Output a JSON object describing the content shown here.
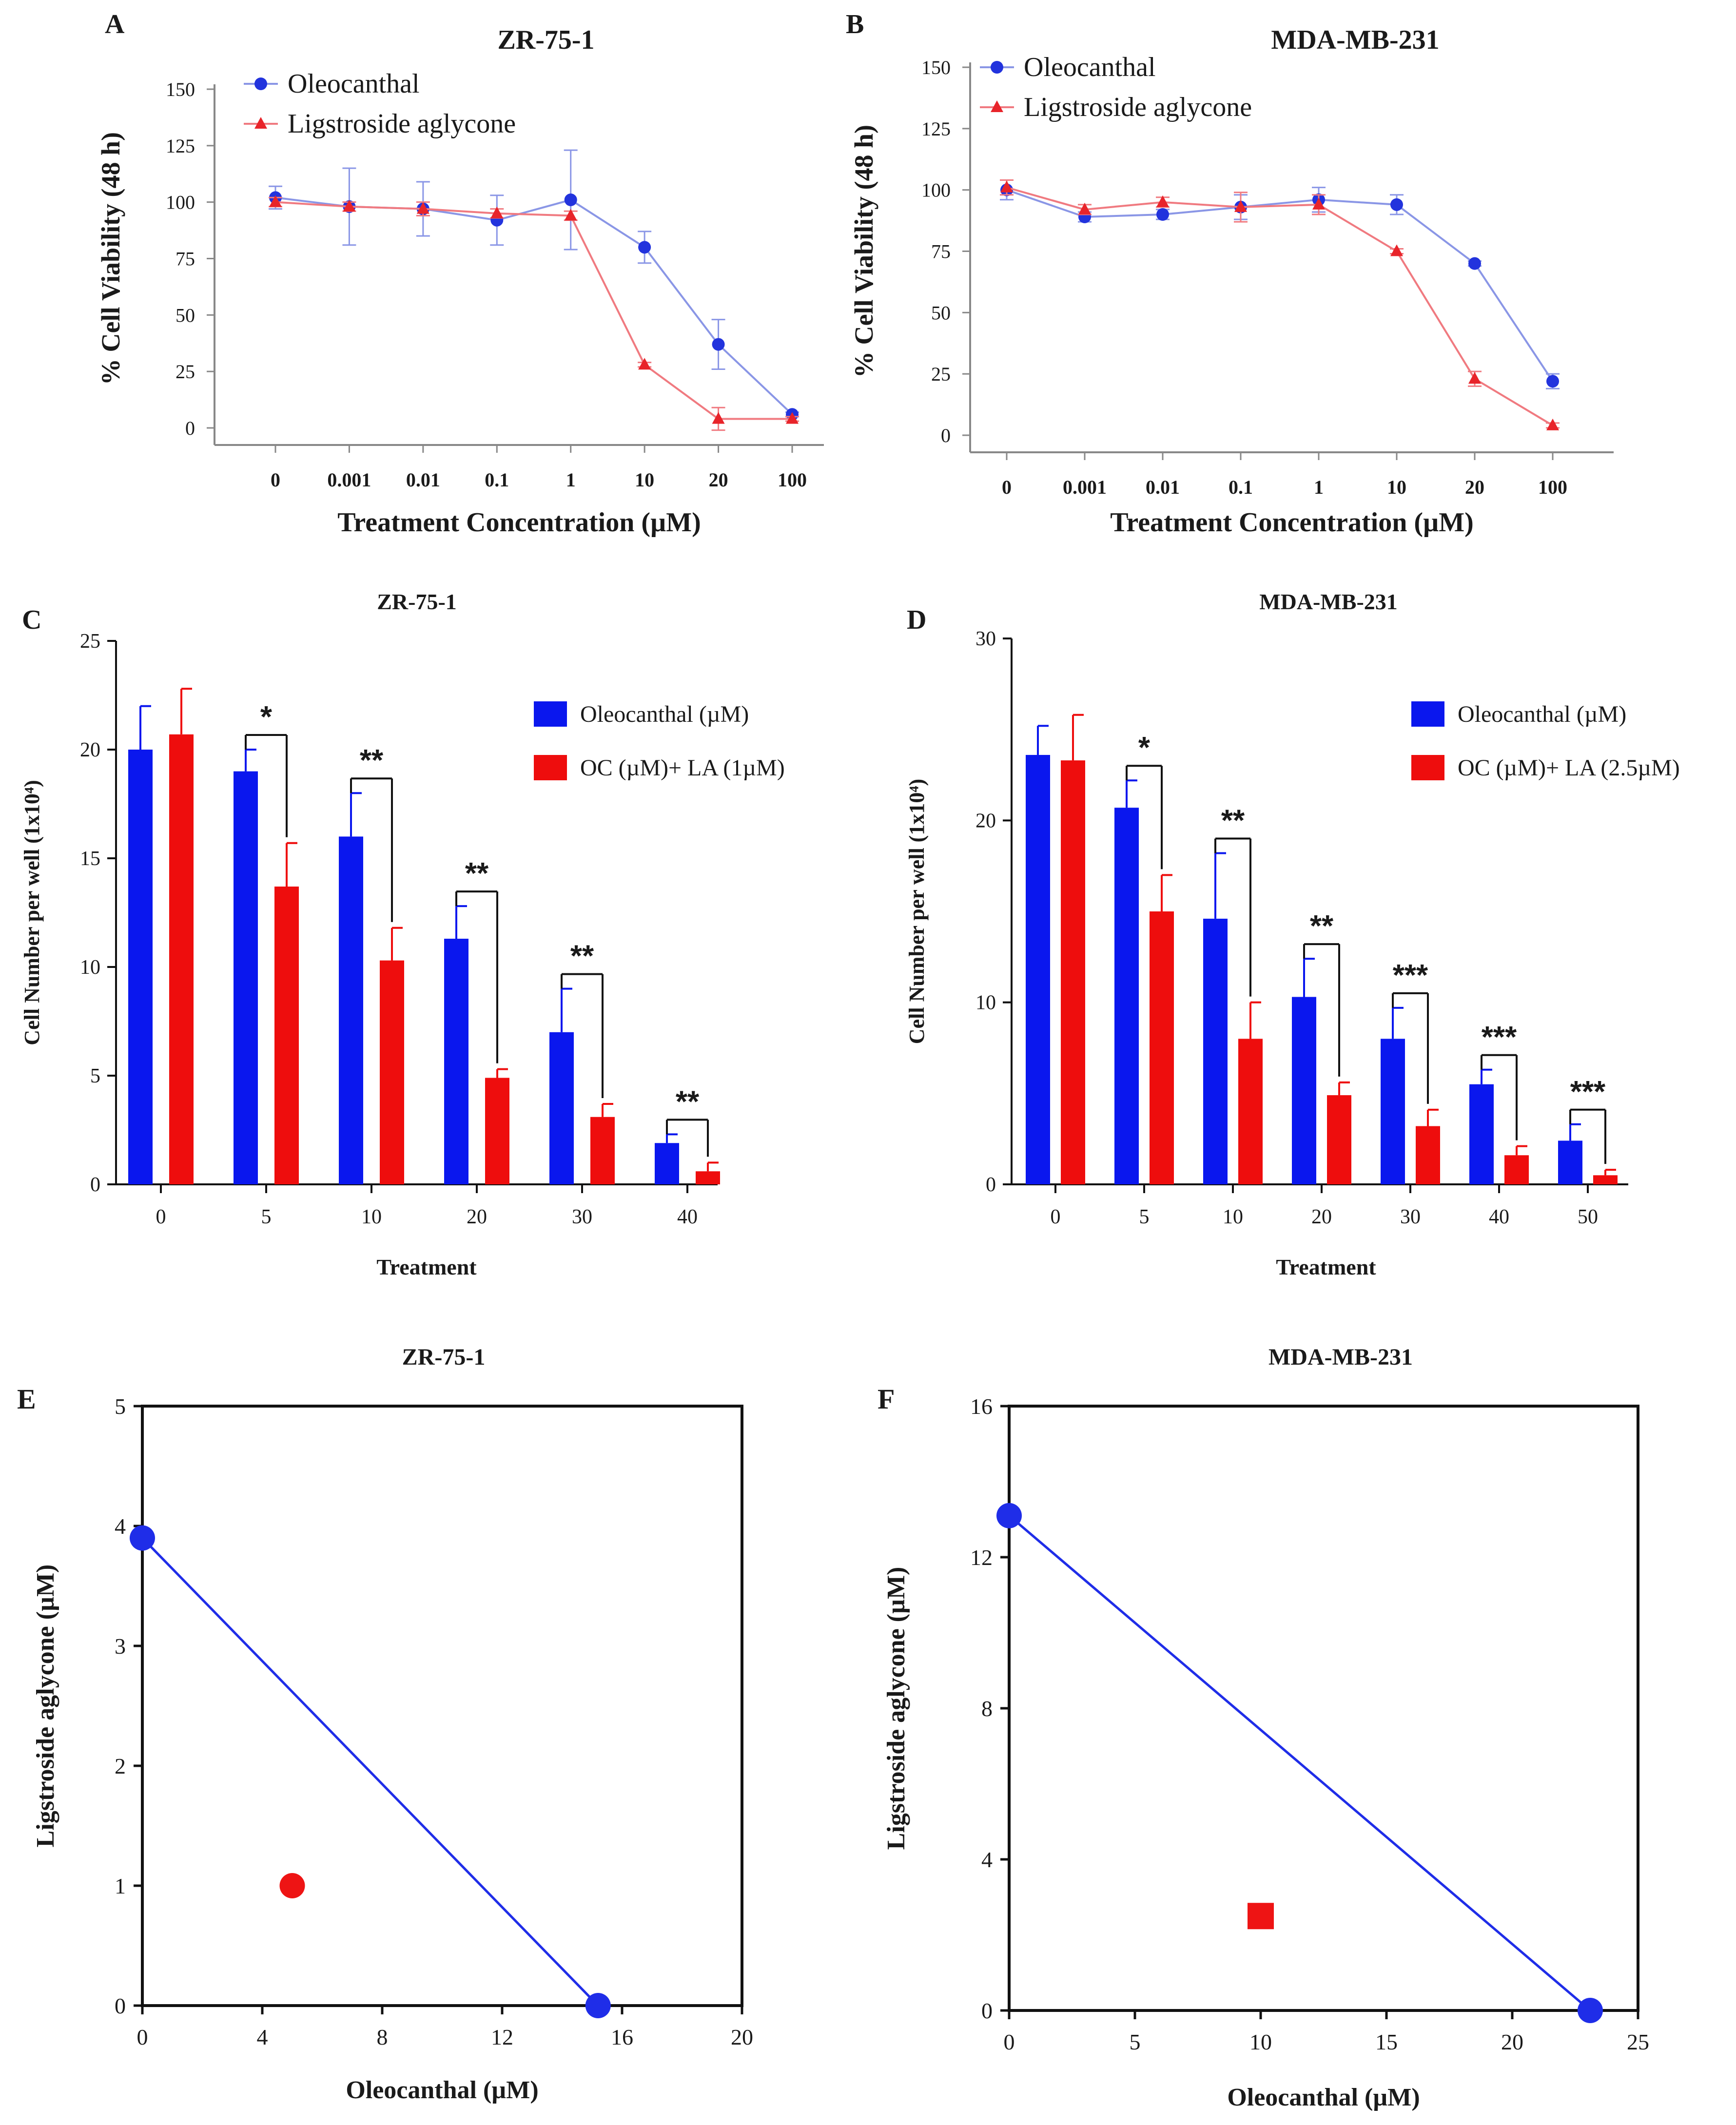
{
  "chart_data": [
    {
      "panel": "A",
      "type": "line",
      "title": "ZR-75-1",
      "xlabel": "Treatment Concentration (µM)",
      "ylabel": "% Cell Viability (48 h)",
      "categories": [
        "0",
        "0.001",
        "0.01",
        "0.1",
        "1",
        "10",
        "20",
        "100"
      ],
      "yticks": [
        "0",
        "25",
        "50",
        "75",
        "100",
        "125",
        "150"
      ],
      "ylim": [
        0,
        150
      ],
      "series": [
        {
          "name": "Oleocanthal",
          "color": "#2233dd",
          "line": "#8a96e6",
          "marker": "circle",
          "values": [
            102,
            98,
            97,
            92,
            101,
            80,
            37,
            6
          ],
          "err": [
            5,
            17,
            12,
            11,
            22,
            7,
            11,
            1
          ]
        },
        {
          "name": "Ligstroside aglycone",
          "color": "#e8242a",
          "line": "#f07a80",
          "marker": "triangle",
          "values": [
            100,
            98,
            97,
            95,
            94,
            28,
            4,
            4
          ],
          "err": [
            2,
            2,
            3,
            2,
            2,
            1,
            5,
            1
          ]
        }
      ]
    },
    {
      "panel": "B",
      "type": "line",
      "title": "MDA-MB-231",
      "xlabel": "Treatment Concentration (µM)",
      "ylabel": "% Cell Viability (48 h)",
      "categories": [
        "0",
        "0.001",
        "0.01",
        "0.1",
        "1",
        "10",
        "20",
        "100"
      ],
      "yticks": [
        "0",
        "25",
        "50",
        "75",
        "100",
        "125",
        "150"
      ],
      "ylim": [
        0,
        150
      ],
      "series": [
        {
          "name": "Oleocanthal",
          "color": "#2233dd",
          "line": "#8a96e6",
          "marker": "circle",
          "values": [
            100,
            89,
            90,
            93,
            96,
            94,
            70,
            22
          ],
          "err": [
            4,
            2,
            2,
            5,
            5,
            4,
            1,
            3
          ]
        },
        {
          "name": "Ligstroside aglycone",
          "color": "#e8242a",
          "line": "#f07a80",
          "marker": "triangle",
          "values": [
            101,
            92,
            95,
            93,
            94,
            75,
            23,
            4
          ],
          "err": [
            3,
            2,
            2,
            6,
            4,
            1,
            3,
            1
          ]
        }
      ]
    },
    {
      "panel": "C",
      "type": "bar",
      "title": "ZR-75-1",
      "xlabel": "Treatment",
      "ylabel": "Cell Number per well (1x10⁴)",
      "categories": [
        "0",
        "5",
        "10",
        "20",
        "30",
        "40"
      ],
      "yticks": [
        "0",
        "5",
        "10",
        "15",
        "20",
        "25"
      ],
      "ylim": [
        0,
        25
      ],
      "series": [
        {
          "name": "Oleocanthal (µM)",
          "color": "#0a17ee",
          "values": [
            20.0,
            19.0,
            16.0,
            11.3,
            7.0,
            1.9
          ],
          "err": [
            2.0,
            1.0,
            2.0,
            1.5,
            2.0,
            0.4
          ]
        },
        {
          "name": "OC (µM)+ LA (1µM)",
          "color": "#ee0d0d",
          "values": [
            20.7,
            13.7,
            10.3,
            4.9,
            3.1,
            0.6
          ],
          "err": [
            2.1,
            2.0,
            1.5,
            0.4,
            0.6,
            0.4
          ]
        }
      ],
      "significance": [
        "",
        "*",
        "**",
        "**",
        "**",
        "**"
      ]
    },
    {
      "panel": "D",
      "type": "bar",
      "title": "MDA-MB-231",
      "xlabel": "Treatment",
      "ylabel": "Cell Number per well (1x10⁴)",
      "categories": [
        "0",
        "5",
        "10",
        "20",
        "30",
        "40",
        "50"
      ],
      "yticks": [
        "0",
        "10",
        "20",
        "30"
      ],
      "ylim": [
        0,
        30
      ],
      "series": [
        {
          "name": "Oleocanthal (µM)",
          "color": "#0a17ee",
          "values": [
            23.6,
            20.7,
            14.6,
            10.3,
            8.0,
            5.5,
            2.4
          ],
          "err": [
            1.6,
            1.5,
            3.6,
            2.1,
            1.7,
            0.8,
            0.9
          ]
        },
        {
          "name": "OC (µM)+ LA (2.5µM)",
          "color": "#ee0d0d",
          "values": [
            23.3,
            15.0,
            8.0,
            4.9,
            3.2,
            1.6,
            0.5
          ],
          "err": [
            2.5,
            2.0,
            2.0,
            0.7,
            0.9,
            0.5,
            0.3
          ]
        }
      ],
      "significance": [
        "",
        "*",
        "**",
        "**",
        "***",
        "***",
        "***"
      ]
    },
    {
      "panel": "E",
      "type": "scatter",
      "title": "ZR-75-1",
      "xlabel": "Oleocanthal (µM)",
      "ylabel": "Ligstroside aglycone (µM)",
      "xlim": [
        0,
        20
      ],
      "ylim": [
        0,
        5
      ],
      "xticks": [
        0,
        4,
        8,
        12,
        16,
        20
      ],
      "yticks": [
        0,
        1,
        2,
        3,
        4,
        5
      ],
      "isobole": {
        "points": [
          [
            0,
            3.9
          ],
          [
            15.2,
            0
          ]
        ],
        "color": "#1f2de8"
      },
      "combination": {
        "x": 5,
        "y": 1,
        "shape": "circle",
        "color": "#ee1414"
      }
    },
    {
      "panel": "F",
      "type": "scatter",
      "title": "MDA-MB-231",
      "xlabel": "Oleocanthal (µM)",
      "ylabel": "Ligstroside aglycone (µM)",
      "xlim": [
        0,
        25
      ],
      "ylim": [
        0,
        16
      ],
      "xticks": [
        0,
        5,
        10,
        15,
        20,
        25
      ],
      "yticks": [
        0,
        4,
        8,
        12,
        16
      ],
      "isobole": {
        "points": [
          [
            0,
            13.1
          ],
          [
            23.1,
            0
          ]
        ],
        "color": "#1f2de8"
      },
      "combination": {
        "x": 10,
        "y": 2.5,
        "shape": "square",
        "color": "#ee1414"
      }
    }
  ]
}
